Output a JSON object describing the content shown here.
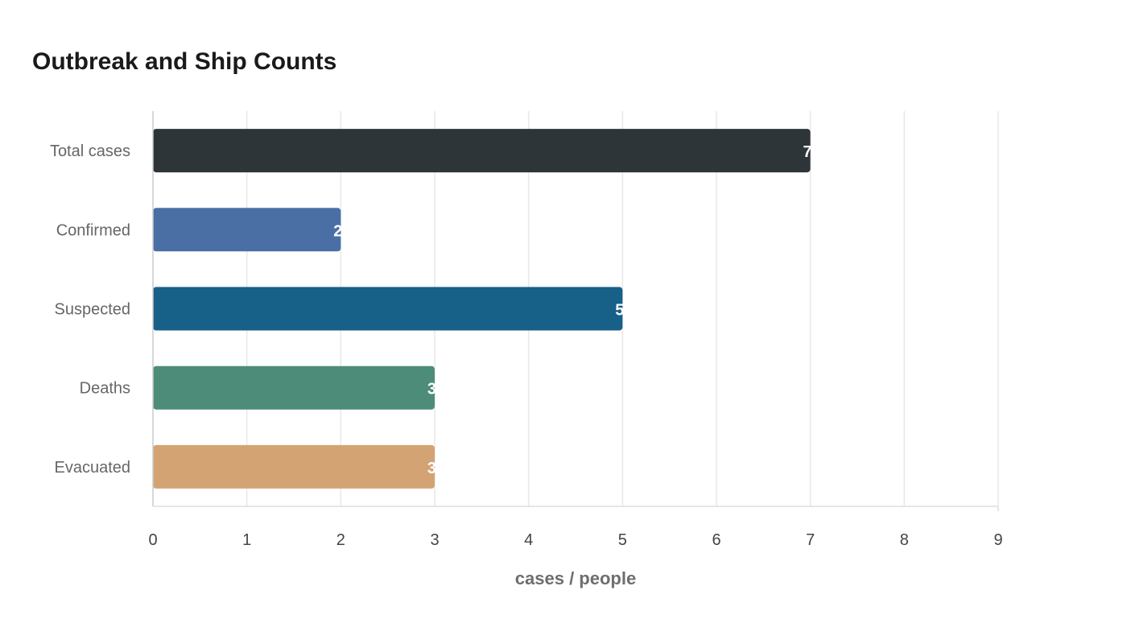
{
  "chart_data": {
    "type": "bar",
    "orientation": "horizontal",
    "title": "Outbreak and Ship Counts",
    "xlabel": "cases / people",
    "ylabel": "",
    "categories": [
      "Total cases",
      "Confirmed",
      "Suspected",
      "Deaths",
      "Evacuated"
    ],
    "values": [
      7,
      2,
      5,
      3,
      3
    ],
    "colors": [
      "#2e3538",
      "#4a6fa5",
      "#176087",
      "#4e8c7a",
      "#d4a373"
    ],
    "xlim": [
      0,
      9
    ],
    "xticks": [
      "0",
      "1",
      "2",
      "3",
      "4",
      "5",
      "6",
      "7",
      "8",
      "9"
    ],
    "grid": true,
    "legend": "none"
  }
}
